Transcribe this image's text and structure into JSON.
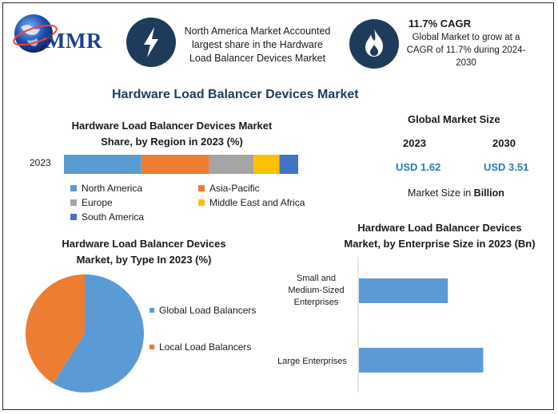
{
  "logo": {
    "text": "MMR"
  },
  "banner1": {
    "text_lines": [
      "North America Market Accounted",
      "largest share in the Hardware",
      "Load Balancer Devices Market"
    ]
  },
  "banner2": {
    "title": "11.7% CAGR",
    "text_lines": [
      "Global Market to grow at a",
      "CAGR of 11.7% during 2024-",
      "2030"
    ]
  },
  "main_title": "Hardware Load Balancer Devices Market",
  "market_size": {
    "title": "Global Market Size",
    "years": [
      "2023",
      "2030"
    ],
    "values": [
      "USD 1.62",
      "USD 3.51"
    ],
    "unit_prefix": "Market Size in ",
    "unit_bold": "Billion"
  },
  "colors": {
    "blue": "#5b9bd5",
    "orange": "#ed7d31",
    "gray": "#a5a5a5",
    "yellow": "#ffc000",
    "darkblue": "#4472c4",
    "navy": "#1f3b5c"
  },
  "chart_data": [
    {
      "type": "bar",
      "orientation": "horizontal",
      "stacked": true,
      "title_lines": [
        "Hardware Load Balancer Devices Market",
        "Share, by Region in 2023 (%)"
      ],
      "categories": [
        "2023"
      ],
      "series": [
        {
          "name": "North America",
          "values": [
            33
          ],
          "color": "#5b9bd5"
        },
        {
          "name": "Asia-Pacific",
          "values": [
            29
          ],
          "color": "#ed7d31"
        },
        {
          "name": "Europe",
          "values": [
            19
          ],
          "color": "#a5a5a5"
        },
        {
          "name": "Middle East and Africa",
          "values": [
            11
          ],
          "color": "#ffc000"
        },
        {
          "name": "South America",
          "values": [
            8
          ],
          "color": "#4472c4"
        }
      ],
      "legend": "bottom"
    },
    {
      "type": "pie",
      "title_lines": [
        "Hardware Load Balancer Devices",
        "Market, by Type In 2023 (%)"
      ],
      "labels": [
        "Global Load Balancers",
        "Local Load Balancers"
      ],
      "values": [
        59,
        41
      ],
      "colors": [
        "#5b9bd5",
        "#ed7d31"
      ],
      "legend": "right"
    },
    {
      "type": "bar",
      "orientation": "horizontal",
      "title_lines": [
        "Hardware Load Balancer Devices",
        "Market, by Enterprise Size in 2023 (Bn)"
      ],
      "categories": [
        [
          "Small and",
          "Medium-Sized",
          "Enterprises"
        ],
        [
          "Large Enterprises"
        ]
      ],
      "values": [
        0.68,
        0.95
      ],
      "xlim": [
        0,
        1.1
      ],
      "color": "#5b9bd5"
    }
  ]
}
